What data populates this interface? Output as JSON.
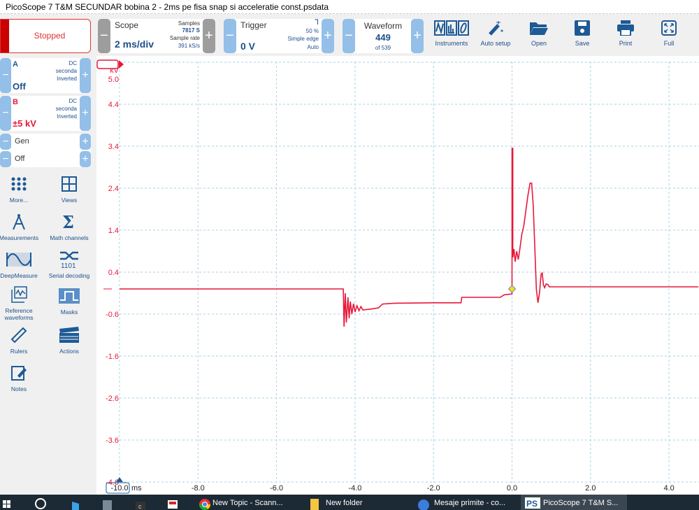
{
  "window": {
    "title": "PicoScope 7 T&M SECUNDAR bobina 2 - 2ms pe fisa snap si acceleratie const.psdata"
  },
  "toolbar": {
    "run_state": "Stopped",
    "scope": {
      "label": "Scope",
      "value": "2 ms/div",
      "samples_label": "Samples",
      "samples": "7817 S",
      "rate_label": "Sample rate",
      "rate": "391 kS/s"
    },
    "trigger": {
      "label": "Trigger",
      "value": "0 V",
      "edge_icon": "falling-edge-icon",
      "position": "50 %",
      "type": "Simple edge",
      "mode": "Auto"
    },
    "waveform": {
      "label": "Waveform",
      "value": "449",
      "of": "of 539"
    },
    "buttons": [
      {
        "label": "Instruments",
        "icon": "instruments-icon"
      },
      {
        "label": "Auto setup",
        "icon": "magic-wand-icon"
      },
      {
        "label": "Open",
        "icon": "folder-icon"
      },
      {
        "label": "Save",
        "icon": "floppy-icon"
      },
      {
        "label": "Print",
        "icon": "printer-icon"
      },
      {
        "label": "Full",
        "icon": "fullscreen-icon"
      }
    ]
  },
  "channels": {
    "a": {
      "name": "A",
      "coupling": "DC",
      "probe": "seconda",
      "mode": "Inverted",
      "range": "Off"
    },
    "b": {
      "name": "B",
      "coupling": "DC",
      "probe": "seconda",
      "mode": "Inverted",
      "range": "±5 kV",
      "color": "#e8173a"
    },
    "gen": {
      "name": "Gen",
      "value": "Off"
    }
  },
  "tools": [
    {
      "label": "More...",
      "icon": "grid-dots-icon"
    },
    {
      "label": "Views",
      "icon": "views-icon"
    },
    {
      "label": "Measurements",
      "icon": "compass-icon"
    },
    {
      "label": "Math channels",
      "icon": "sigma-icon"
    },
    {
      "label": "DeepMeasure",
      "icon": "deepmeasure-icon"
    },
    {
      "label": "Serial decoding",
      "icon": "serial-decoding-icon"
    },
    {
      "label": "Reference waveforms",
      "icon": "reference-waveforms-icon"
    },
    {
      "label": "Masks",
      "icon": "masks-icon"
    },
    {
      "label": "Rulers",
      "icon": "ruler-icon"
    },
    {
      "label": "Actions",
      "icon": "clapperboard-icon"
    },
    {
      "label": "Notes",
      "icon": "notes-icon"
    }
  ],
  "chart_data": {
    "type": "line",
    "ylabel": "kV",
    "xlabel": "ms",
    "xlim": [
      -10,
      4.75
    ],
    "ylim": [
      -4.6,
      5.4
    ],
    "x_ticks": [
      "-10.0",
      "-8.0",
      "-6.0",
      "-4.0",
      "-2.0",
      "0.0",
      "2.0",
      "4.0"
    ],
    "y_ticks": [
      "5.0",
      "4.4",
      "3.4",
      "2.4",
      "1.4",
      "0.4",
      "-0.6",
      "-1.6",
      "-2.6",
      "-3.6",
      "-4.6"
    ],
    "grid": true,
    "trigger_marker": {
      "x": 0,
      "y": 0,
      "color": "#f5e400"
    },
    "series": [
      {
        "color": "#e8173a",
        "points": [
          [
            -10,
            0
          ],
          [
            -4.3,
            0
          ],
          [
            -4.28,
            -0.9
          ],
          [
            -4.25,
            -0.1
          ],
          [
            -4.22,
            -0.8
          ],
          [
            -4.18,
            -0.2
          ],
          [
            -4.15,
            -0.7
          ],
          [
            -4.12,
            -0.3
          ],
          [
            -4.08,
            -0.6
          ],
          [
            -4.04,
            -0.35
          ],
          [
            -4.0,
            -0.55
          ],
          [
            -3.95,
            -0.4
          ],
          [
            -3.9,
            -0.52
          ],
          [
            -3.85,
            -0.42
          ],
          [
            -3.8,
            -0.5
          ],
          [
            -3.6,
            -0.48
          ],
          [
            -3.4,
            -0.45
          ],
          [
            -3.3,
            -0.36
          ],
          [
            -3.0,
            -0.34
          ],
          [
            -2.0,
            -0.33
          ],
          [
            -1.3,
            -0.33
          ],
          [
            -1.28,
            -0.2
          ],
          [
            -0.3,
            -0.2
          ],
          [
            -0.2,
            -0.14
          ],
          [
            0,
            -0.12
          ],
          [
            0,
            0
          ],
          [
            0,
            3.35
          ],
          [
            0.02,
            3.35
          ],
          [
            0.02,
            0.75
          ],
          [
            0.05,
            0.95
          ],
          [
            0.08,
            0.65
          ],
          [
            0.12,
            0.9
          ],
          [
            0.16,
            0.7
          ],
          [
            0.2,
            0.95
          ],
          [
            0.25,
            1.3
          ],
          [
            0.3,
            1.5
          ],
          [
            0.35,
            1.85
          ],
          [
            0.4,
            2.2
          ],
          [
            0.46,
            2.52
          ],
          [
            0.5,
            2.52
          ],
          [
            0.54,
            2.0
          ],
          [
            0.58,
            1.0
          ],
          [
            0.62,
            0.0
          ],
          [
            0.66,
            -0.33
          ],
          [
            0.7,
            -0.1
          ],
          [
            0.74,
            0.35
          ],
          [
            0.77,
            0.38
          ],
          [
            0.8,
            0.1
          ],
          [
            0.83,
            0.03
          ],
          [
            0.87,
            0.12
          ],
          [
            0.92,
            0.1
          ],
          [
            0.95,
            0.05
          ],
          [
            4.75,
            0.05
          ]
        ]
      }
    ]
  },
  "taskbar": {
    "items": [
      {
        "label": "New Topic - Scann..."
      },
      {
        "label": "New folder"
      },
      {
        "label": "Mesaje primite - co..."
      },
      {
        "label": "PicoScope 7 T&M S..."
      }
    ]
  }
}
